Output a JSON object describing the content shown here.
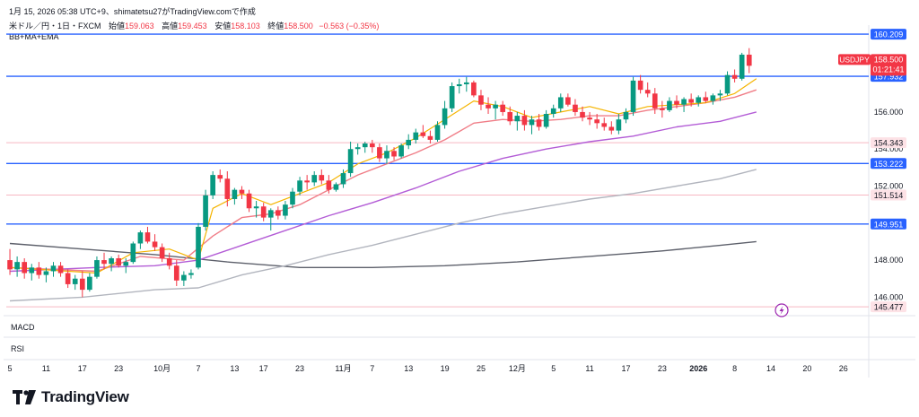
{
  "header": {
    "caption": "1月 15, 2026 05:38 UTC+9、shimatetsu27がTradingView.comで作成"
  },
  "legend": {
    "symbol": "米ドル／円・1日・FXCM",
    "open_label": "始値",
    "open": "159.063",
    "high_label": "高値",
    "high": "159.453",
    "low_label": "安値",
    "low": "158.103",
    "close_label": "終値",
    "close": "158.500",
    "change": "−0.563 (−0.35%)",
    "indicator": "BB+MA+EMA"
  },
  "panes": {
    "macd": "MACD",
    "rsi": "RSI"
  },
  "price_tag": {
    "symbol": "USDJPY",
    "price": "158.500",
    "countdown": "01:21:41"
  },
  "brand": {
    "name": "TradingView"
  },
  "colors": {
    "up": "#089981",
    "down": "#f23645",
    "hline": "#2962ff",
    "pink_line": "#f7b6c2",
    "ma_fast": "#f5b400",
    "ma_mid": "#f07d87",
    "ma_violet": "#b35cd6",
    "ma_gray": "#b2b5be",
    "ma_dark": "#5d606b",
    "grid": "#f0f3fa"
  },
  "chart_data": {
    "type": "candlestick",
    "symbol": "USDJPY",
    "timeframe": "1D",
    "ylim": [
      145.0,
      160.6
    ],
    "y_ticks": [
      146.0,
      148.0,
      152.0,
      154.0,
      156.0
    ],
    "x_ticks": [
      "5",
      "11",
      "17",
      "23",
      "10月",
      "7",
      "13",
      "17",
      "23",
      "11月",
      "7",
      "13",
      "19",
      "25",
      "12月",
      "5",
      "11",
      "17",
      "23",
      "2026",
      "8",
      "14",
      "20",
      "26"
    ],
    "x_tick_index": [
      0,
      5,
      10,
      15,
      21,
      26,
      31,
      35,
      40,
      46,
      50,
      55,
      60,
      65,
      70,
      75,
      80,
      85,
      90,
      95,
      100,
      105,
      110,
      115
    ],
    "horizontal_lines": [
      {
        "price": 160.209,
        "label": "160.209",
        "style": "blue"
      },
      {
        "price": 157.932,
        "label": "157.932",
        "style": "blue"
      },
      {
        "price": 154.343,
        "label": "154.343",
        "style": "pink"
      },
      {
        "price": 153.222,
        "label": "153.222",
        "style": "blue"
      },
      {
        "price": 151.514,
        "label": "151.514",
        "style": "pink"
      },
      {
        "price": 149.951,
        "label": "149.951",
        "style": "blue"
      },
      {
        "price": 145.477,
        "label": "145.477",
        "style": "pink"
      }
    ],
    "candles": [
      [
        148.0,
        148.6,
        147.2,
        147.5
      ],
      [
        147.5,
        148.2,
        147.1,
        147.9
      ],
      [
        147.9,
        148.1,
        147.0,
        147.3
      ],
      [
        147.3,
        147.8,
        146.9,
        147.6
      ],
      [
        147.6,
        147.9,
        147.0,
        147.2
      ],
      [
        147.2,
        147.6,
        146.8,
        147.4
      ],
      [
        147.4,
        147.9,
        147.1,
        147.7
      ],
      [
        147.7,
        147.9,
        147.1,
        147.3
      ],
      [
        147.3,
        147.5,
        146.5,
        146.7
      ],
      [
        146.7,
        147.2,
        146.4,
        147.0
      ],
      [
        147.0,
        147.4,
        146.0,
        146.4
      ],
      [
        146.4,
        147.3,
        146.3,
        147.1
      ],
      [
        147.1,
        148.2,
        147.0,
        148.0
      ],
      [
        148.0,
        148.4,
        147.5,
        147.8
      ],
      [
        147.8,
        148.2,
        147.4,
        148.1
      ],
      [
        148.1,
        148.3,
        147.6,
        147.7
      ],
      [
        147.7,
        148.1,
        147.3,
        147.9
      ],
      [
        147.9,
        149.0,
        147.8,
        148.9
      ],
      [
        148.9,
        149.6,
        148.6,
        149.5
      ],
      [
        149.5,
        149.8,
        148.9,
        149.0
      ],
      [
        149.0,
        149.4,
        148.5,
        148.7
      ],
      [
        148.7,
        148.9,
        147.9,
        148.1
      ],
      [
        148.1,
        148.4,
        147.5,
        147.7
      ],
      [
        147.7,
        148.0,
        146.6,
        146.9
      ],
      [
        146.9,
        147.4,
        146.6,
        147.2
      ],
      [
        147.2,
        147.5,
        147.0,
        147.3
      ],
      [
        147.6,
        150.0,
        147.5,
        149.8
      ],
      [
        149.8,
        151.8,
        149.6,
        151.5
      ],
      [
        151.5,
        152.8,
        151.3,
        152.6
      ],
      [
        152.6,
        152.9,
        152.2,
        152.4
      ],
      [
        152.4,
        152.8,
        150.9,
        151.3
      ],
      [
        151.3,
        151.9,
        151.0,
        151.8
      ],
      [
        151.8,
        152.0,
        151.3,
        151.6
      ],
      [
        151.6,
        151.8,
        150.6,
        150.8
      ],
      [
        150.8,
        151.2,
        150.3,
        150.9
      ],
      [
        150.9,
        151.1,
        150.1,
        150.3
      ],
      [
        150.3,
        150.8,
        149.6,
        150.7
      ],
      [
        150.7,
        150.9,
        150.2,
        150.4
      ],
      [
        150.4,
        151.2,
        150.2,
        151.0
      ],
      [
        151.0,
        151.9,
        150.8,
        151.7
      ],
      [
        151.7,
        152.5,
        151.5,
        152.3
      ],
      [
        152.3,
        152.6,
        151.8,
        152.2
      ],
      [
        152.2,
        152.8,
        152.0,
        152.6
      ],
      [
        152.6,
        152.9,
        152.1,
        152.3
      ],
      [
        152.3,
        152.6,
        151.6,
        151.8
      ],
      [
        151.8,
        152.2,
        151.7,
        152.1
      ],
      [
        152.1,
        152.9,
        151.9,
        152.7
      ],
      [
        152.7,
        154.4,
        152.5,
        154.0
      ],
      [
        154.0,
        154.3,
        153.7,
        154.1
      ],
      [
        154.1,
        154.4,
        153.8,
        154.3
      ],
      [
        154.3,
        154.5,
        153.8,
        154.1
      ],
      [
        154.1,
        154.3,
        153.3,
        153.5
      ],
      [
        153.5,
        154.2,
        153.2,
        153.9
      ],
      [
        153.9,
        154.1,
        153.4,
        153.6
      ],
      [
        153.6,
        154.3,
        153.5,
        154.2
      ],
      [
        154.2,
        154.8,
        154.0,
        154.5
      ],
      [
        154.5,
        155.1,
        154.3,
        154.9
      ],
      [
        154.9,
        155.3,
        154.6,
        154.7
      ],
      [
        154.7,
        155.0,
        154.3,
        154.5
      ],
      [
        154.5,
        155.5,
        154.4,
        155.3
      ],
      [
        155.3,
        156.6,
        155.1,
        156.2
      ],
      [
        156.2,
        157.6,
        156.0,
        157.4
      ],
      [
        157.4,
        157.8,
        157.0,
        157.5
      ],
      [
        157.5,
        157.9,
        157.1,
        157.6
      ],
      [
        157.6,
        157.7,
        156.8,
        156.9
      ],
      [
        156.9,
        157.2,
        156.1,
        156.4
      ],
      [
        156.4,
        156.8,
        155.9,
        156.2
      ],
      [
        156.2,
        156.6,
        155.6,
        156.4
      ],
      [
        156.4,
        156.6,
        155.8,
        156.0
      ],
      [
        156.0,
        156.3,
        155.3,
        155.5
      ],
      [
        155.5,
        156.0,
        155.0,
        155.8
      ],
      [
        155.8,
        156.1,
        155.0,
        155.3
      ],
      [
        155.3,
        155.8,
        154.8,
        155.6
      ],
      [
        155.6,
        155.9,
        155.0,
        155.2
      ],
      [
        155.2,
        156.1,
        155.1,
        155.9
      ],
      [
        155.9,
        156.4,
        155.7,
        156.2
      ],
      [
        156.2,
        157.0,
        156.0,
        156.8
      ],
      [
        156.8,
        157.0,
        156.3,
        156.4
      ],
      [
        156.4,
        156.7,
        155.8,
        156.0
      ],
      [
        156.0,
        156.3,
        155.5,
        155.7
      ],
      [
        155.7,
        156.0,
        155.3,
        155.6
      ],
      [
        155.6,
        155.9,
        155.1,
        155.4
      ],
      [
        155.4,
        155.7,
        155.0,
        155.2
      ],
      [
        155.2,
        155.5,
        154.8,
        155.0
      ],
      [
        155.0,
        155.9,
        154.8,
        155.6
      ],
      [
        155.6,
        156.2,
        155.4,
        156.0
      ],
      [
        156.0,
        157.9,
        155.8,
        157.7
      ],
      [
        157.7,
        158.0,
        157.0,
        157.2
      ],
      [
        157.2,
        157.6,
        156.8,
        157.0
      ],
      [
        157.0,
        157.3,
        155.9,
        156.2
      ],
      [
        156.2,
        156.6,
        155.7,
        156.1
      ],
      [
        156.1,
        156.8,
        156.0,
        156.6
      ],
      [
        156.6,
        156.9,
        156.2,
        156.4
      ],
      [
        156.4,
        156.8,
        156.0,
        156.7
      ],
      [
        156.7,
        157.0,
        156.3,
        156.5
      ],
      [
        156.5,
        156.9,
        156.3,
        156.8
      ],
      [
        156.8,
        157.1,
        156.5,
        156.6
      ],
      [
        156.6,
        157.0,
        156.4,
        156.9
      ],
      [
        156.9,
        157.2,
        156.6,
        157.0
      ],
      [
        157.0,
        158.2,
        156.9,
        158.0
      ],
      [
        158.0,
        158.3,
        157.6,
        157.8
      ],
      [
        157.8,
        159.2,
        157.7,
        159.1
      ],
      [
        159.1,
        159.453,
        158.103,
        158.5
      ]
    ],
    "x_count": 119,
    "ma_fast": [
      [
        0,
        147.6
      ],
      [
        12,
        147.3
      ],
      [
        17,
        148.4
      ],
      [
        22,
        148.6
      ],
      [
        26,
        148.0
      ],
      [
        28,
        150.8
      ],
      [
        32,
        151.6
      ],
      [
        36,
        151.0
      ],
      [
        40,
        151.6
      ],
      [
        44,
        152.2
      ],
      [
        48,
        153.2
      ],
      [
        52,
        153.8
      ],
      [
        56,
        154.6
      ],
      [
        60,
        155.6
      ],
      [
        64,
        156.6
      ],
      [
        68,
        156.3
      ],
      [
        72,
        155.7
      ],
      [
        76,
        156.0
      ],
      [
        80,
        156.3
      ],
      [
        84,
        155.9
      ],
      [
        88,
        156.3
      ],
      [
        92,
        156.4
      ],
      [
        96,
        156.5
      ],
      [
        100,
        157.0
      ],
      [
        103,
        157.8
      ]
    ],
    "ma_mid": [
      [
        0,
        147.6
      ],
      [
        12,
        147.4
      ],
      [
        18,
        148.2
      ],
      [
        24,
        148.0
      ],
      [
        28,
        149.3
      ],
      [
        32,
        150.3
      ],
      [
        36,
        150.5
      ],
      [
        40,
        151.0
      ],
      [
        44,
        151.8
      ],
      [
        48,
        152.6
      ],
      [
        52,
        153.2
      ],
      [
        56,
        153.8
      ],
      [
        60,
        154.5
      ],
      [
        64,
        155.4
      ],
      [
        68,
        155.6
      ],
      [
        72,
        155.5
      ],
      [
        76,
        155.6
      ],
      [
        80,
        155.8
      ],
      [
        84,
        155.8
      ],
      [
        88,
        156.1
      ],
      [
        92,
        156.3
      ],
      [
        96,
        156.5
      ],
      [
        100,
        156.8
      ],
      [
        103,
        157.2
      ]
    ],
    "ma_violet": [
      [
        0,
        147.4
      ],
      [
        12,
        147.6
      ],
      [
        20,
        147.7
      ],
      [
        26,
        148.0
      ],
      [
        32,
        148.8
      ],
      [
        38,
        149.6
      ],
      [
        44,
        150.4
      ],
      [
        50,
        151.1
      ],
      [
        56,
        151.9
      ],
      [
        62,
        152.8
      ],
      [
        68,
        153.5
      ],
      [
        74,
        154.0
      ],
      [
        80,
        154.4
      ],
      [
        86,
        154.7
      ],
      [
        92,
        155.2
      ],
      [
        98,
        155.5
      ],
      [
        103,
        156.0
      ]
    ],
    "ma_gray": [
      [
        0,
        145.8
      ],
      [
        10,
        146.0
      ],
      [
        20,
        146.4
      ],
      [
        26,
        146.5
      ],
      [
        32,
        147.2
      ],
      [
        38,
        147.7
      ],
      [
        44,
        148.3
      ],
      [
        50,
        148.8
      ],
      [
        56,
        149.4
      ],
      [
        62,
        150.0
      ],
      [
        68,
        150.5
      ],
      [
        74,
        150.9
      ],
      [
        80,
        151.3
      ],
      [
        86,
        151.6
      ],
      [
        92,
        152.0
      ],
      [
        98,
        152.4
      ],
      [
        103,
        152.9
      ]
    ],
    "ma_dark": [
      [
        0,
        148.9
      ],
      [
        10,
        148.6
      ],
      [
        20,
        148.3
      ],
      [
        30,
        147.9
      ],
      [
        40,
        147.6
      ],
      [
        50,
        147.6
      ],
      [
        60,
        147.7
      ],
      [
        70,
        147.9
      ],
      [
        80,
        148.2
      ],
      [
        90,
        148.5
      ],
      [
        98,
        148.8
      ],
      [
        103,
        149.0
      ]
    ]
  }
}
